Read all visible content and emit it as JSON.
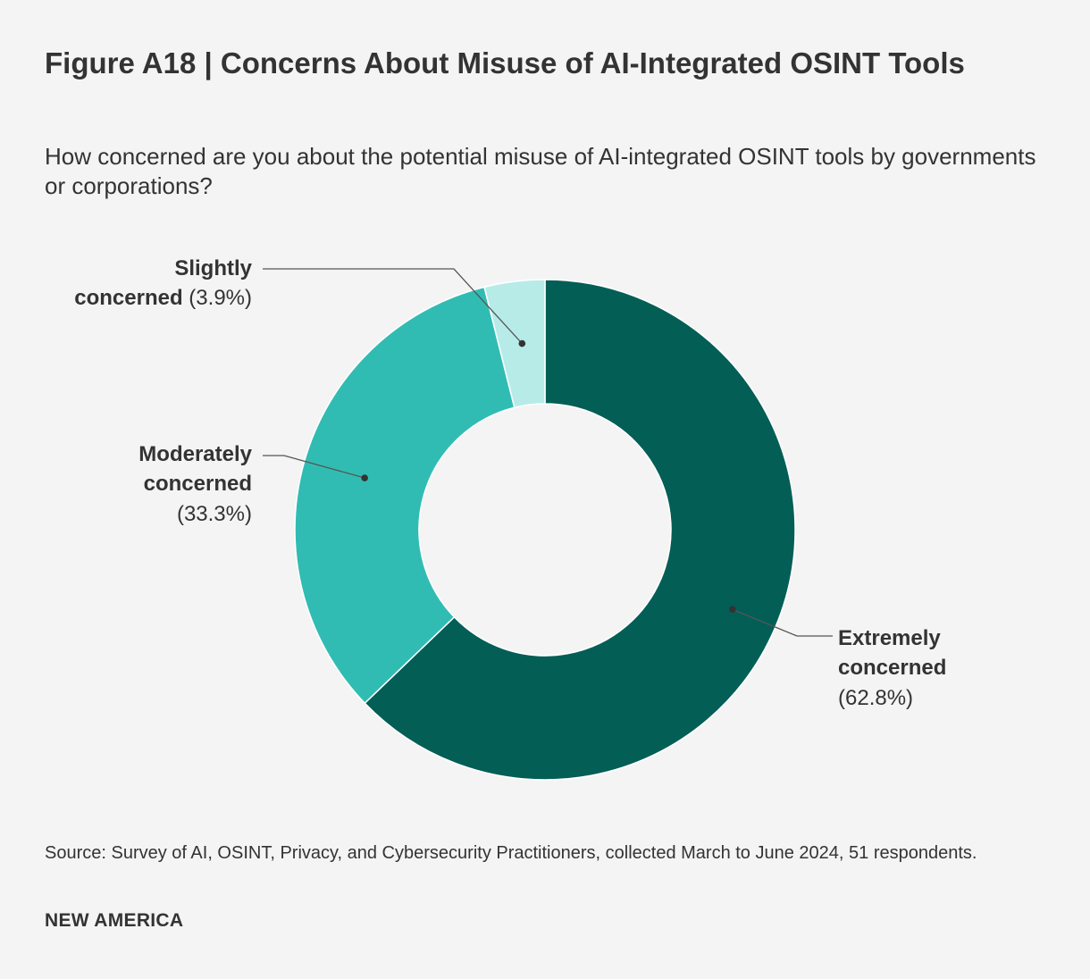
{
  "title": "Figure A18 | Concerns About Misuse of AI-Integrated OSINT Tools",
  "subtitle": "How concerned are you about the potential misuse of AI-integrated OSINT tools by governments or corporations?",
  "chart_data": {
    "type": "pie",
    "variant": "donut",
    "slices": [
      {
        "name": "Extremely concerned",
        "label_lines": [
          "Extremely",
          "concerned"
        ],
        "value": 62.8,
        "value_label": "(62.8%)",
        "color": "#035e56"
      },
      {
        "name": "Moderately concerned",
        "label_lines": [
          "Moderately",
          "concerned"
        ],
        "value": 33.3,
        "value_label": "(33.3%)",
        "color": "#31bcb3"
      },
      {
        "name": "Slightly concerned",
        "label_lines": [
          "Slightly",
          "concerned"
        ],
        "value": 3.9,
        "value_label": "(3.9%)",
        "color": "#b7ebe8"
      }
    ]
  },
  "source": "Source: Survey of AI, OSINT, Privacy, and Cybersecurity Practitioners, collected March to June 2024, 51 respondents.",
  "logo": "NEW AMERICA"
}
